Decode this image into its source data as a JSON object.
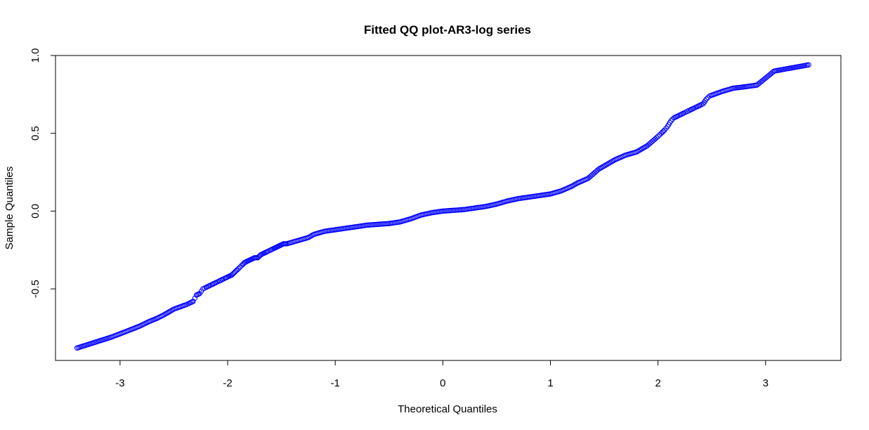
{
  "chart_data": {
    "type": "scatter",
    "title": "Fitted QQ plot-AR3-log series",
    "xlabel": "Theoretical Quantiles",
    "ylabel": "Sample Quantiles",
    "xlim": [
      -3.6,
      3.7
    ],
    "ylim": [
      -0.96,
      1.0
    ],
    "x_ticks": [
      -3,
      -2,
      -1,
      0,
      1,
      2,
      3
    ],
    "x_tick_labels": [
      "-3",
      "-2",
      "-1",
      "0",
      "1",
      "2",
      "3"
    ],
    "y_ticks": [
      -0.5,
      0.0,
      0.5,
      1.0
    ],
    "y_tick_labels": [
      "-0.5",
      "0.0",
      "0.5",
      "1.0"
    ],
    "grid": false,
    "marker": "open-circle",
    "point_color": "#0000ff",
    "series": [
      {
        "x": [
          -3.4,
          -3.08,
          -2.93,
          -2.82,
          -2.73,
          -2.66,
          -2.6,
          -2.55,
          -2.5,
          -2.46,
          -2.42,
          -2.38,
          -2.35,
          -2.32,
          -2.29,
          -2.26,
          -2.23,
          -2.2,
          -2.17,
          -2.14,
          -2.11,
          -2.08,
          -2.05,
          -2.02,
          -1.99,
          -1.96,
          -1.93,
          -1.9,
          -1.87,
          -1.84,
          -1.81,
          -1.78,
          -1.75,
          -1.72,
          -1.69,
          -1.66,
          -1.63,
          -1.6,
          -1.57,
          -1.54,
          -1.51,
          -1.48,
          -1.45,
          -1.4,
          -1.35,
          -1.3,
          -1.25,
          -1.2,
          -1.15,
          -1.1,
          -1.05,
          -1.0,
          -0.9,
          -0.8,
          -0.7,
          -0.6,
          -0.5,
          -0.4,
          -0.3,
          -0.2,
          -0.1,
          0.0,
          0.1,
          0.2,
          0.3,
          0.4,
          0.5,
          0.6,
          0.7,
          0.8,
          0.9,
          1.0,
          1.1,
          1.15,
          1.2,
          1.25,
          1.3,
          1.35,
          1.4,
          1.45,
          1.5,
          1.55,
          1.6,
          1.65,
          1.7,
          1.75,
          1.8,
          1.85,
          1.9,
          1.95,
          2.0,
          2.03,
          2.06,
          2.09,
          2.12,
          2.15,
          2.18,
          2.21,
          2.24,
          2.27,
          2.3,
          2.33,
          2.36,
          2.39,
          2.42,
          2.45,
          2.48,
          2.52,
          2.56,
          2.6,
          2.65,
          2.7,
          2.76,
          2.82,
          2.92,
          3.08,
          3.4
        ],
        "y": [
          -0.88,
          -0.81,
          -0.77,
          -0.74,
          -0.71,
          -0.69,
          -0.67,
          -0.65,
          -0.63,
          -0.62,
          -0.61,
          -0.6,
          -0.59,
          -0.58,
          -0.54,
          -0.53,
          -0.5,
          -0.49,
          -0.48,
          -0.47,
          -0.46,
          -0.45,
          -0.44,
          -0.43,
          -0.42,
          -0.41,
          -0.39,
          -0.37,
          -0.35,
          -0.33,
          -0.32,
          -0.31,
          -0.3,
          -0.3,
          -0.28,
          -0.27,
          -0.26,
          -0.25,
          -0.24,
          -0.23,
          -0.22,
          -0.21,
          -0.21,
          -0.2,
          -0.19,
          -0.18,
          -0.17,
          -0.15,
          -0.14,
          -0.13,
          -0.125,
          -0.12,
          -0.11,
          -0.1,
          -0.09,
          -0.085,
          -0.08,
          -0.07,
          -0.05,
          -0.025,
          -0.01,
          0.0,
          0.005,
          0.01,
          0.02,
          0.03,
          0.045,
          0.065,
          0.08,
          0.09,
          0.1,
          0.11,
          0.13,
          0.145,
          0.16,
          0.18,
          0.195,
          0.21,
          0.24,
          0.27,
          0.29,
          0.31,
          0.33,
          0.345,
          0.36,
          0.37,
          0.38,
          0.4,
          0.42,
          0.45,
          0.48,
          0.5,
          0.52,
          0.545,
          0.58,
          0.6,
          0.61,
          0.62,
          0.63,
          0.64,
          0.65,
          0.66,
          0.67,
          0.68,
          0.69,
          0.72,
          0.74,
          0.75,
          0.76,
          0.77,
          0.78,
          0.79,
          0.795,
          0.8,
          0.81,
          0.9,
          0.94
        ]
      }
    ]
  }
}
